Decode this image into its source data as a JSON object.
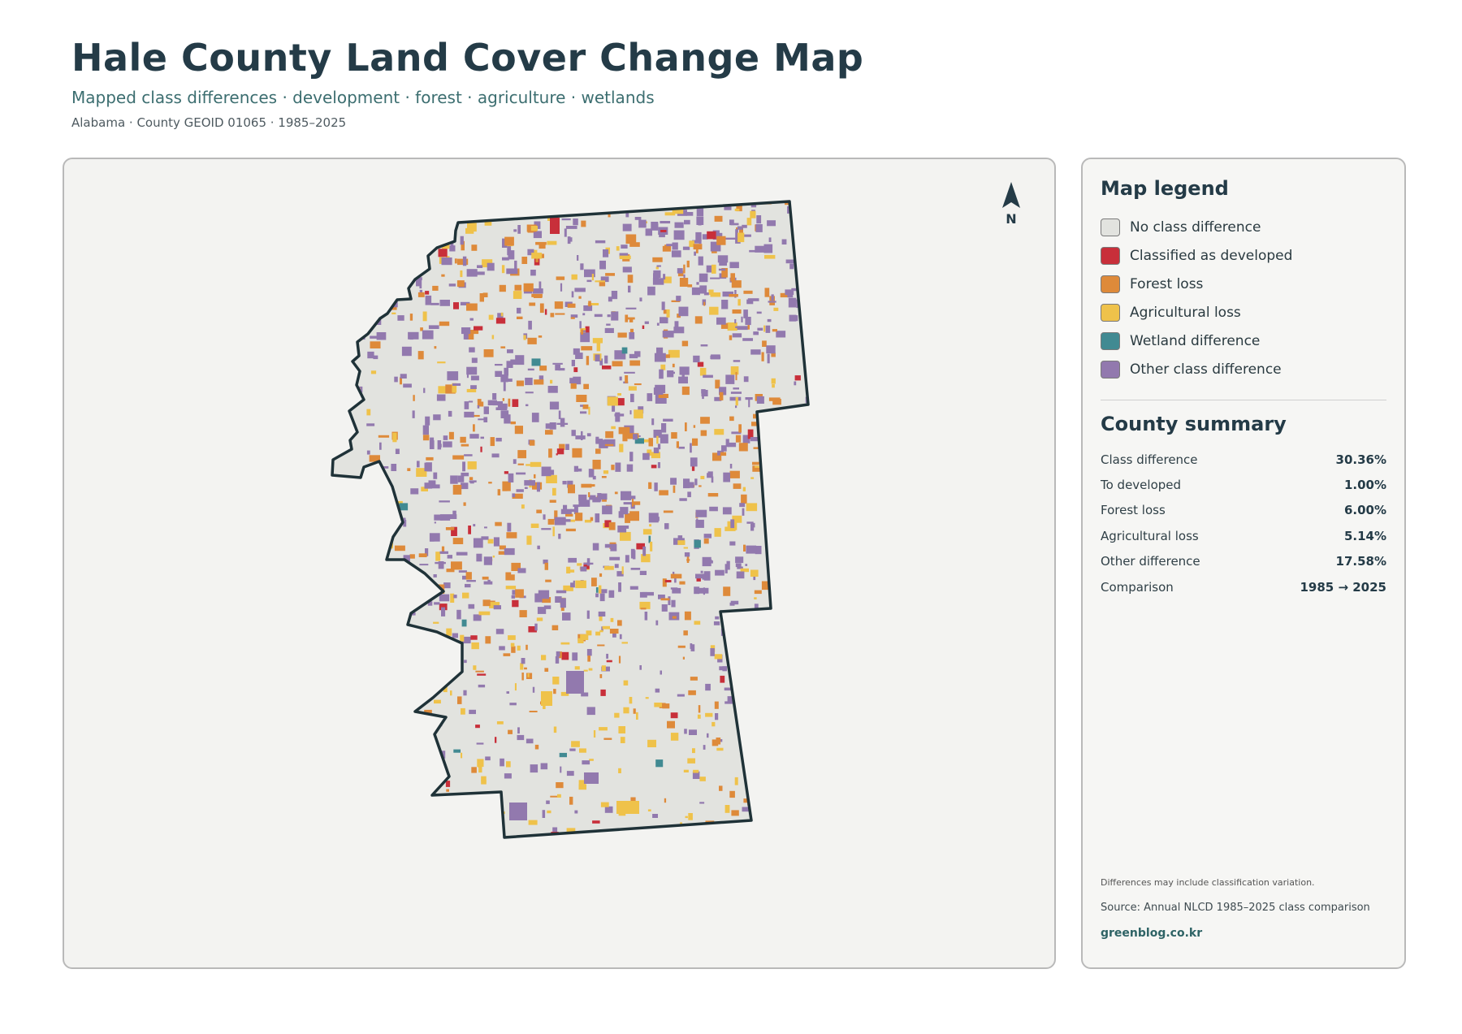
{
  "header": {
    "title": "Hale County Land Cover Change Map",
    "subtitle": "Mapped class differences · development · forest · agriculture · wetlands",
    "meta": "Alabama · County GEOID 01065 · 1985–2025"
  },
  "map": {
    "north_label": "N",
    "icons": [
      "north-arrow-icon"
    ]
  },
  "colors": {
    "no_change": "#e2e3df",
    "developed": "#c82f3a",
    "forest": "#de8a3a",
    "agricultural": "#efc24a",
    "wetland": "#418a92",
    "other": "#9279ae",
    "boundary": "#1f3238"
  },
  "legend": {
    "title": "Map legend",
    "items": [
      {
        "label": "No class difference",
        "color": "#e2e3df"
      },
      {
        "label": "Classified as developed",
        "color": "#c82f3a"
      },
      {
        "label": "Forest loss",
        "color": "#de8a3a"
      },
      {
        "label": "Agricultural loss",
        "color": "#efc24a"
      },
      {
        "label": "Wetland difference",
        "color": "#418a92"
      },
      {
        "label": "Other class difference",
        "color": "#9279ae"
      }
    ]
  },
  "summary": {
    "title": "County summary",
    "rows": [
      {
        "label": "Class difference",
        "value": "30.36%"
      },
      {
        "label": "To developed",
        "value": "1.00%"
      },
      {
        "label": "Forest loss",
        "value": "6.00%"
      },
      {
        "label": "Agricultural loss",
        "value": "5.14%"
      },
      {
        "label": "Other difference",
        "value": "17.58%"
      },
      {
        "label": "Comparison",
        "value": "1985 → 2025"
      }
    ]
  },
  "footer": {
    "note": "Differences may include classification variation.",
    "source": "Source: Annual NLCD 1985–2025 class comparison",
    "site": "greenblog.co.kr"
  }
}
